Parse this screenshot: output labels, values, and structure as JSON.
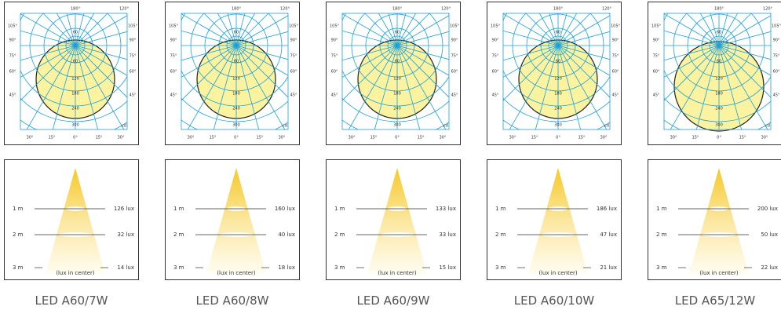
{
  "polar": {
    "top": "180°",
    "corner": "120°",
    "side": [
      "105°",
      "90°",
      "75°",
      "60°",
      "45°"
    ],
    "bottom": [
      "30°",
      "15°",
      "0°",
      "15°",
      "30°"
    ],
    "radial": [
      "60",
      "60",
      "120",
      "180",
      "240",
      "300"
    ],
    "unit": "cd"
  },
  "lux_chart": {
    "distances": [
      "1 m",
      "2 m",
      "3 m"
    ],
    "note": "(lux in center)"
  },
  "products": [
    {
      "name": "LED A60/7W",
      "lux": [
        "126 lux",
        "32 lux",
        "14 lux"
      ]
    },
    {
      "name": "LED A60/8W",
      "lux": [
        "160 lux",
        "40 lux",
        "18 lux"
      ]
    },
    {
      "name": "LED A60/9W",
      "lux": [
        "133 lux",
        "33 lux",
        "15 lux"
      ]
    },
    {
      "name": "LED A60/10W",
      "lux": [
        "186 lux",
        "47 lux",
        "21 lux"
      ]
    },
    {
      "name": "LED A65/12W",
      "lux": [
        "200 lux",
        "50 lux",
        "22 lux"
      ]
    }
  ]
}
